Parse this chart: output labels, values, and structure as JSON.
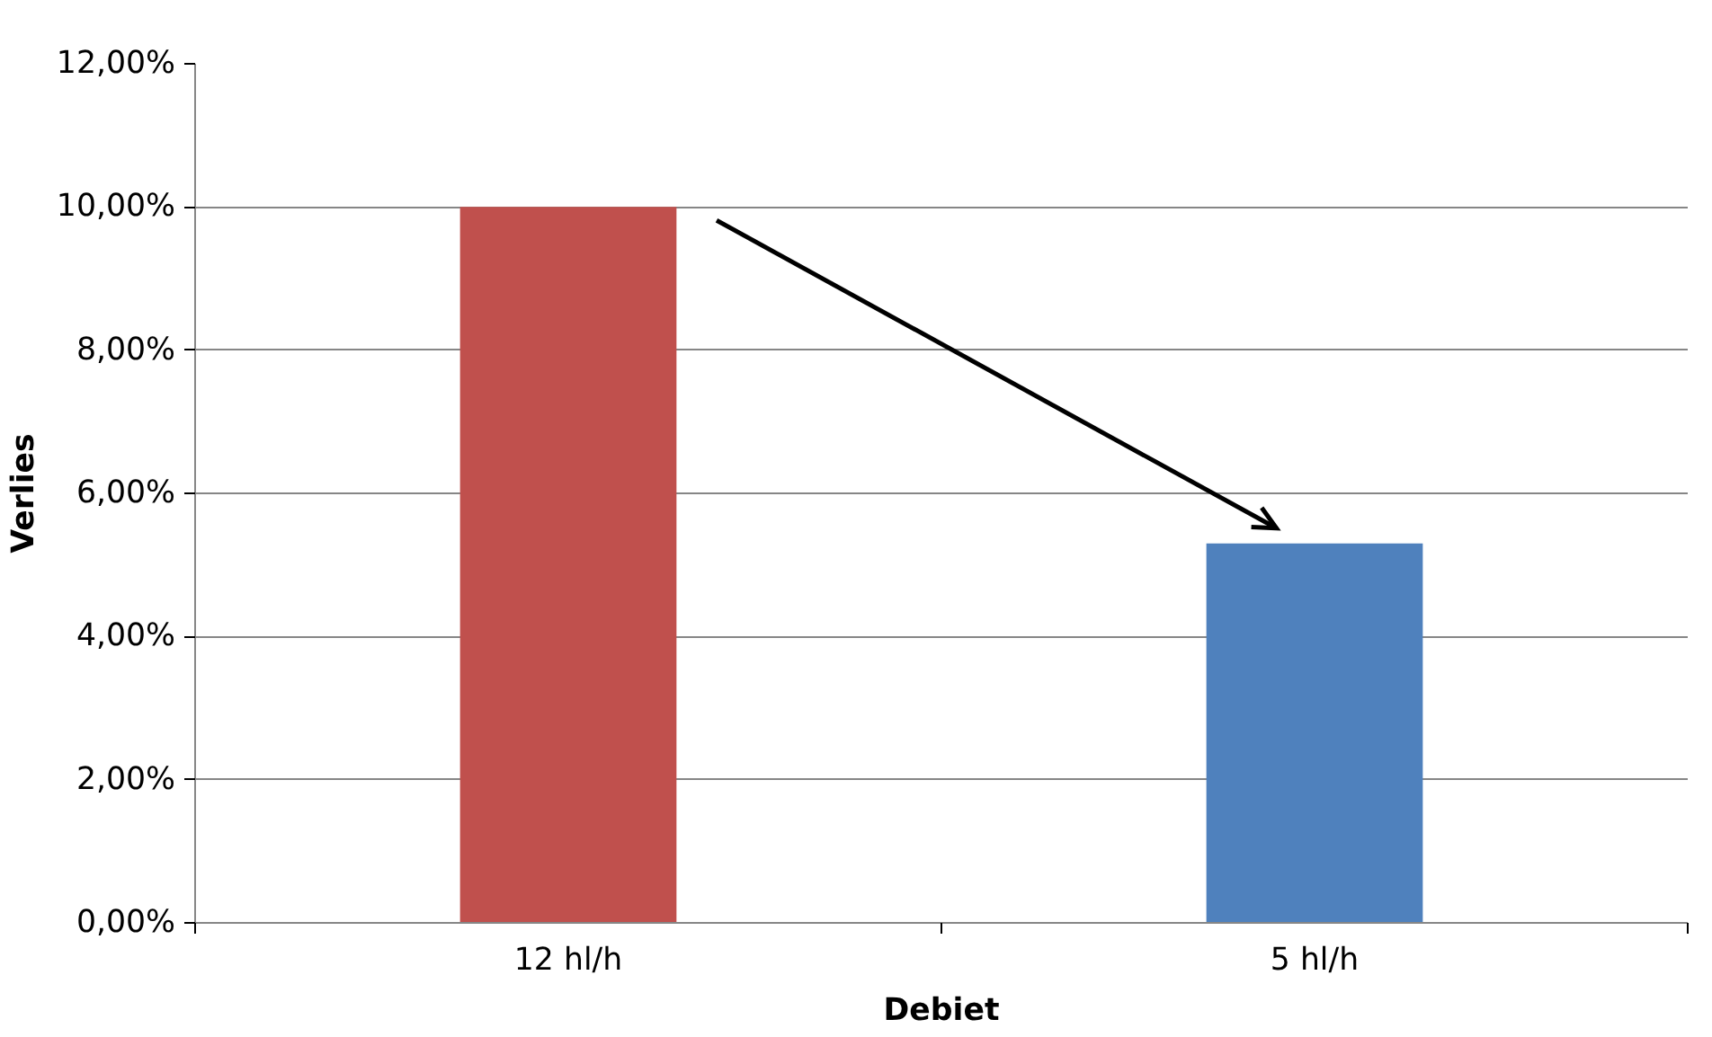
{
  "chart_data": {
    "type": "bar",
    "xlabel": "Debiet",
    "ylabel": "Verlies",
    "categories": [
      "12 hl/h",
      "5 hl/h"
    ],
    "values": [
      10,
      5.3
    ],
    "colors": [
      "#c0504d",
      "#4f81bd"
    ],
    "ylim": [
      0,
      12
    ],
    "yticks": [
      {
        "value": 0,
        "label": "0,00%"
      },
      {
        "value": 2,
        "label": "2,00%"
      },
      {
        "value": 4,
        "label": "4,00%"
      },
      {
        "value": 6,
        "label": "6,00%"
      },
      {
        "value": 8,
        "label": "8,00%"
      },
      {
        "value": 10,
        "label": "10,00%"
      },
      {
        "value": 12,
        "label": "12,00%"
      }
    ],
    "grid": "y"
  }
}
